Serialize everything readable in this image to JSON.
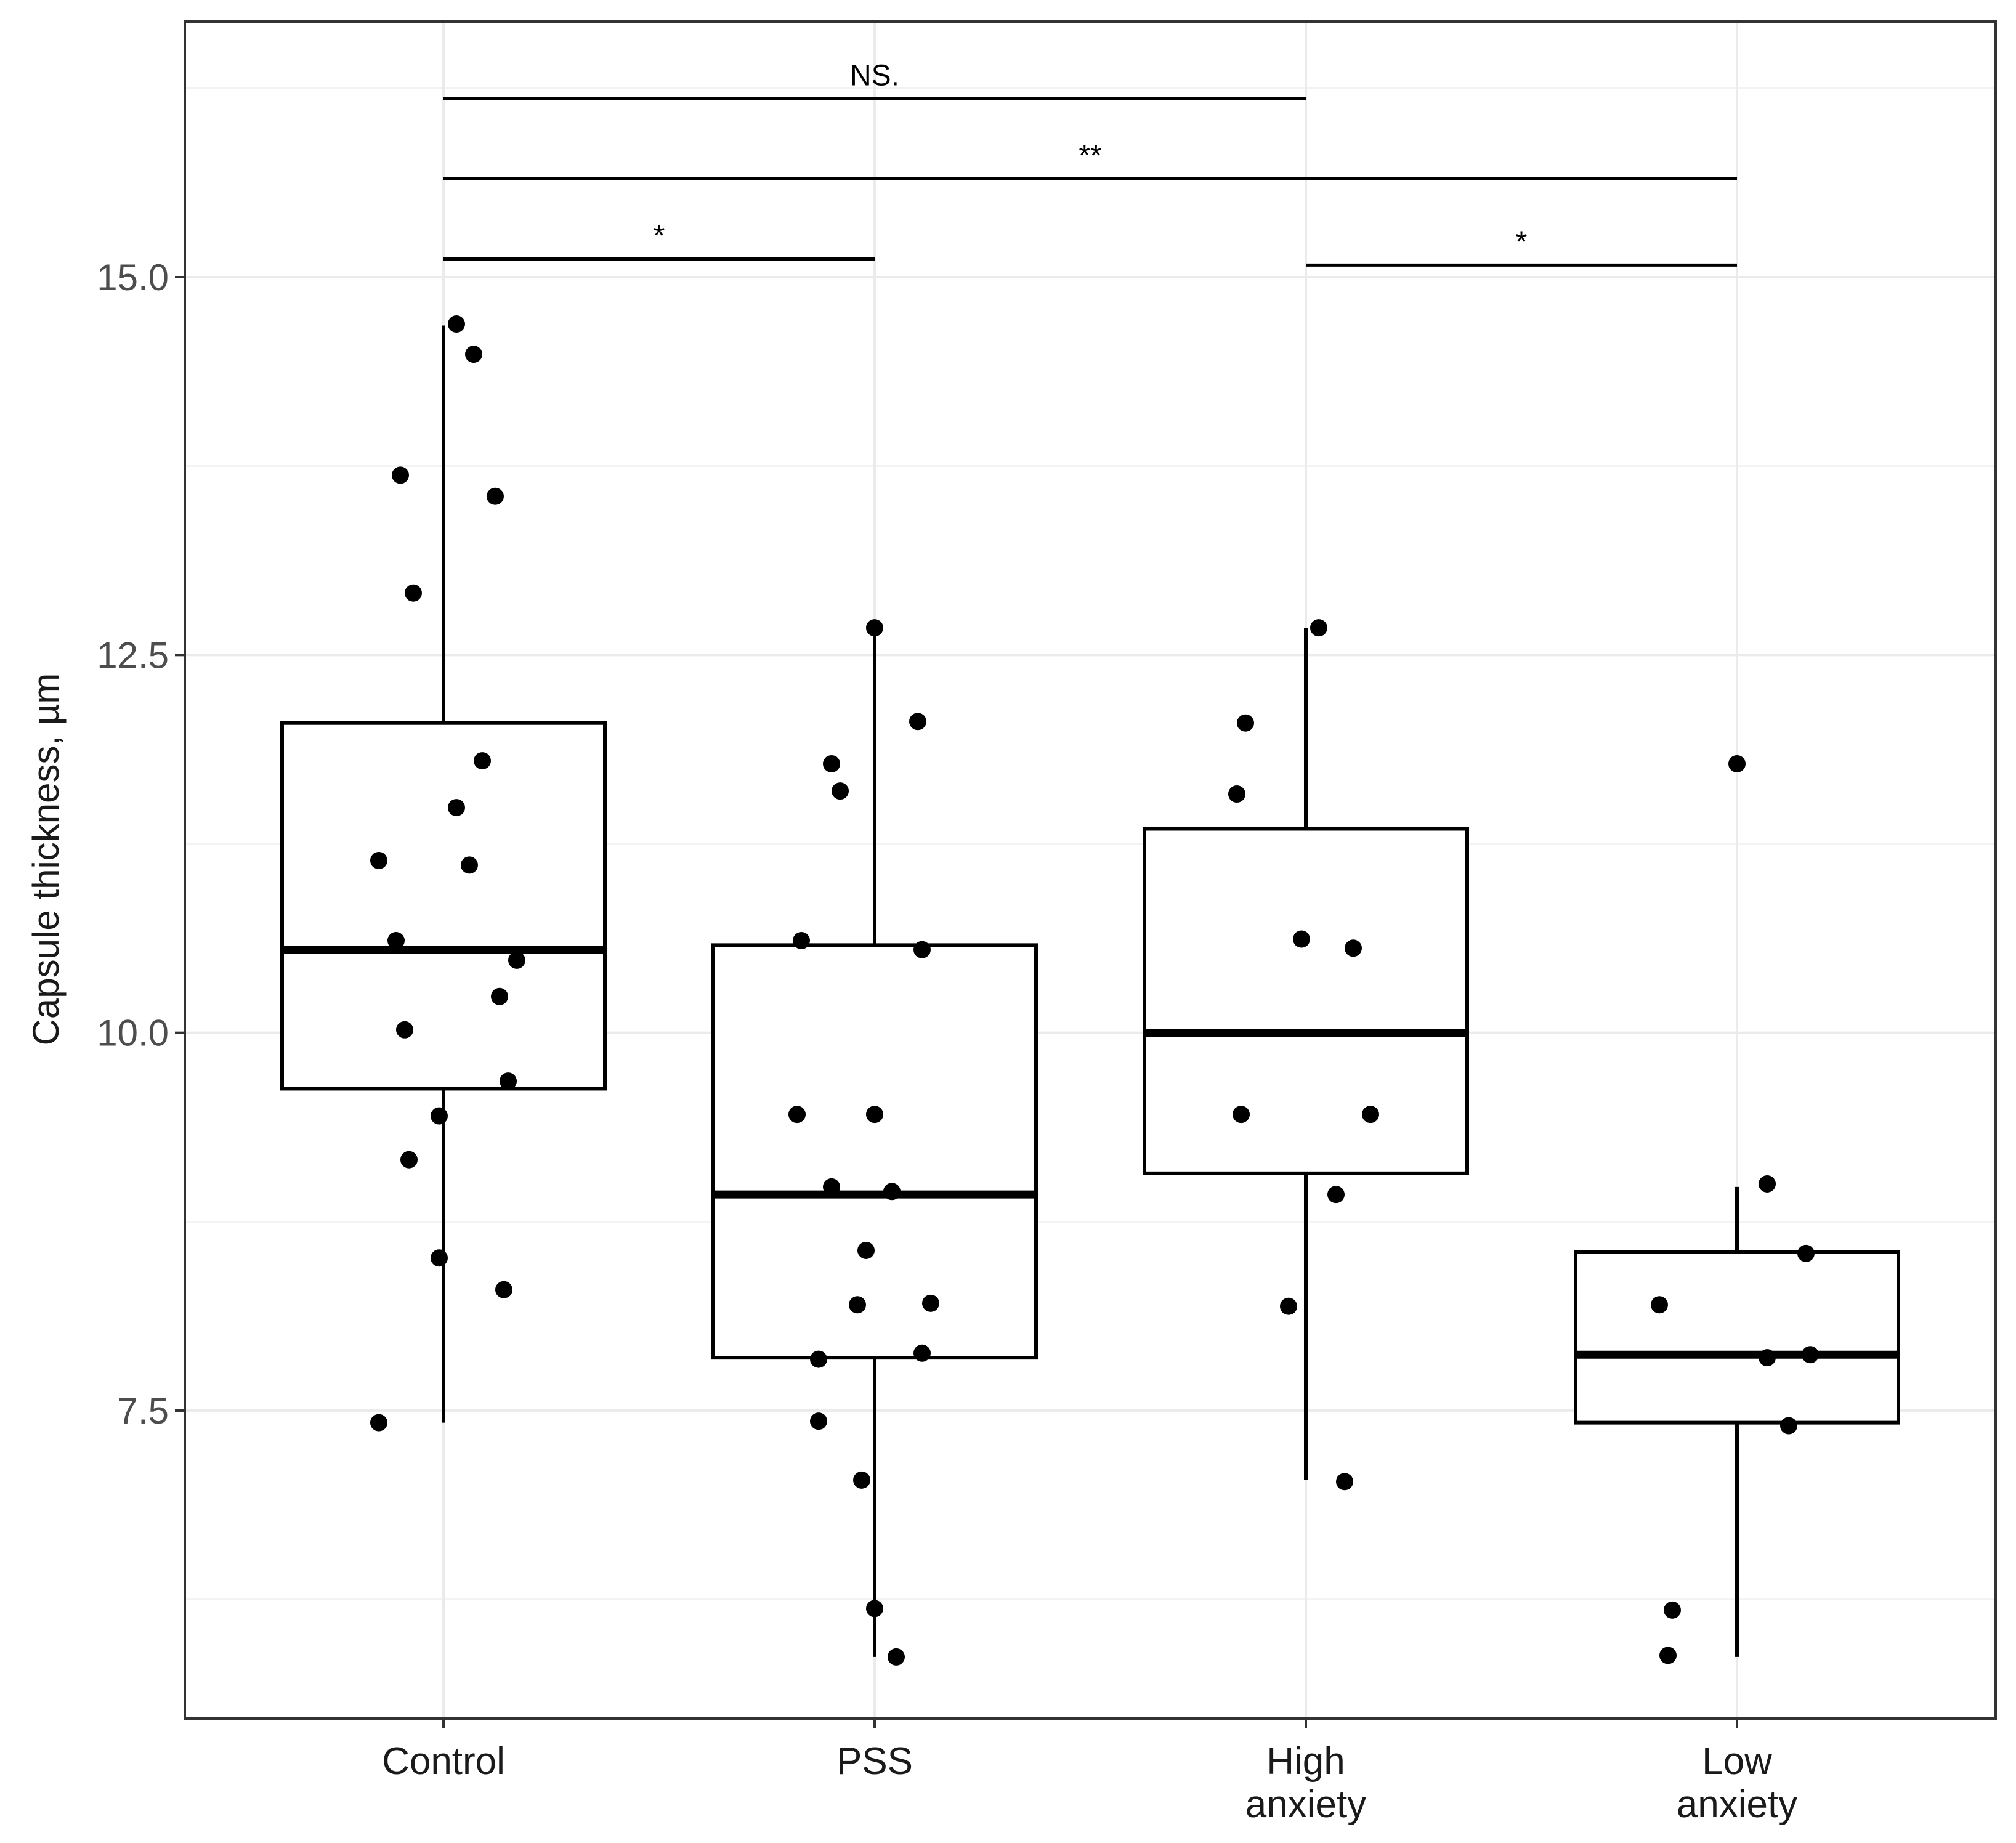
{
  "chart_data": {
    "type": "box",
    "title": "",
    "xlabel": "",
    "ylabel": "Capsule thickness, µm",
    "ylim": [
      5.25,
      16.5
    ],
    "yticks": [
      7.5,
      10.0,
      12.5,
      15.0
    ],
    "ytick_labels": [
      "7.5",
      "10.0",
      "12.5",
      "15.0"
    ],
    "grid": true,
    "categories": [
      {
        "label": [
          "Control"
        ]
      },
      {
        "label": [
          "PSS"
        ]
      },
      {
        "label": [
          "High",
          "anxiety"
        ]
      },
      {
        "label": [
          "Low",
          "anxiety"
        ]
      }
    ],
    "boxes": [
      {
        "q1": 9.63,
        "median": 10.55,
        "q3": 12.05,
        "whisker_low": 7.42,
        "whisker_high": 14.68
      },
      {
        "q1": 7.85,
        "median": 8.93,
        "q3": 10.58,
        "whisker_low": 5.87,
        "whisker_high": 12.68
      },
      {
        "q1": 9.07,
        "median": 10.0,
        "q3": 11.35,
        "whisker_low": 7.04,
        "whisker_high": 12.68
      },
      {
        "q1": 7.42,
        "median": 7.87,
        "q3": 8.55,
        "whisker_low": 5.87,
        "whisker_high": 8.98
      }
    ],
    "points": [
      [
        {
          "dx": 0.03,
          "y": 14.69
        },
        {
          "dx": 0.07,
          "y": 14.49
        },
        {
          "dx": -0.1,
          "y": 13.69
        },
        {
          "dx": 0.12,
          "y": 13.55
        },
        {
          "dx": -0.07,
          "y": 12.91
        },
        {
          "dx": 0.09,
          "y": 11.8
        },
        {
          "dx": 0.03,
          "y": 11.49
        },
        {
          "dx": -0.15,
          "y": 11.14
        },
        {
          "dx": 0.06,
          "y": 11.11
        },
        {
          "dx": -0.11,
          "y": 10.61
        },
        {
          "dx": 0.17,
          "y": 10.48
        },
        {
          "dx": 0.13,
          "y": 10.24
        },
        {
          "dx": -0.09,
          "y": 10.02
        },
        {
          "dx": 0.15,
          "y": 9.68
        },
        {
          "dx": -0.01,
          "y": 9.45
        },
        {
          "dx": -0.08,
          "y": 9.16
        },
        {
          "dx": -0.01,
          "y": 8.51
        },
        {
          "dx": 0.14,
          "y": 8.3
        },
        {
          "dx": -0.15,
          "y": 7.42
        }
      ],
      [
        {
          "dx": 0.0,
          "y": 12.68
        },
        {
          "dx": 0.1,
          "y": 12.06
        },
        {
          "dx": -0.1,
          "y": 11.78
        },
        {
          "dx": -0.08,
          "y": 11.6
        },
        {
          "dx": -0.17,
          "y": 10.61
        },
        {
          "dx": 0.11,
          "y": 10.55
        },
        {
          "dx": -0.18,
          "y": 9.46
        },
        {
          "dx": 0.0,
          "y": 9.46
        },
        {
          "dx": -0.1,
          "y": 8.98
        },
        {
          "dx": 0.04,
          "y": 8.95
        },
        {
          "dx": -0.02,
          "y": 8.56
        },
        {
          "dx": -0.04,
          "y": 8.2
        },
        {
          "dx": 0.13,
          "y": 8.21
        },
        {
          "dx": -0.13,
          "y": 7.84
        },
        {
          "dx": 0.11,
          "y": 7.88
        },
        {
          "dx": -0.13,
          "y": 7.43
        },
        {
          "dx": -0.03,
          "y": 7.04
        },
        {
          "dx": 0.0,
          "y": 6.19
        },
        {
          "dx": 0.05,
          "y": 5.87
        }
      ],
      [
        {
          "dx": 0.03,
          "y": 12.68
        },
        {
          "dx": -0.14,
          "y": 12.05
        },
        {
          "dx": -0.16,
          "y": 11.58
        },
        {
          "dx": -0.01,
          "y": 10.62
        },
        {
          "dx": 0.11,
          "y": 10.56
        },
        {
          "dx": -0.15,
          "y": 9.46
        },
        {
          "dx": 0.15,
          "y": 9.46
        },
        {
          "dx": 0.07,
          "y": 8.93
        },
        {
          "dx": -0.04,
          "y": 8.19
        },
        {
          "dx": 0.09,
          "y": 7.03
        }
      ],
      [
        {
          "dx": 0.0,
          "y": 11.78
        },
        {
          "dx": 0.07,
          "y": 9.0
        },
        {
          "dx": 0.16,
          "y": 8.54
        },
        {
          "dx": -0.18,
          "y": 8.2
        },
        {
          "dx": 0.07,
          "y": 7.85
        },
        {
          "dx": 0.17,
          "y": 7.87
        },
        {
          "dx": 0.12,
          "y": 7.4
        },
        {
          "dx": -0.15,
          "y": 6.18
        },
        {
          "dx": -0.16,
          "y": 5.88
        }
      ]
    ],
    "significance": [
      {
        "from": 0,
        "to": 2,
        "y": 16.18,
        "label": "NS."
      },
      {
        "from": 0,
        "to": 3,
        "y": 15.65,
        "label": "**"
      },
      {
        "from": 0,
        "to": 1,
        "y": 15.12,
        "label": "*"
      },
      {
        "from": 2,
        "to": 3,
        "y": 15.08,
        "label": "*"
      }
    ]
  }
}
